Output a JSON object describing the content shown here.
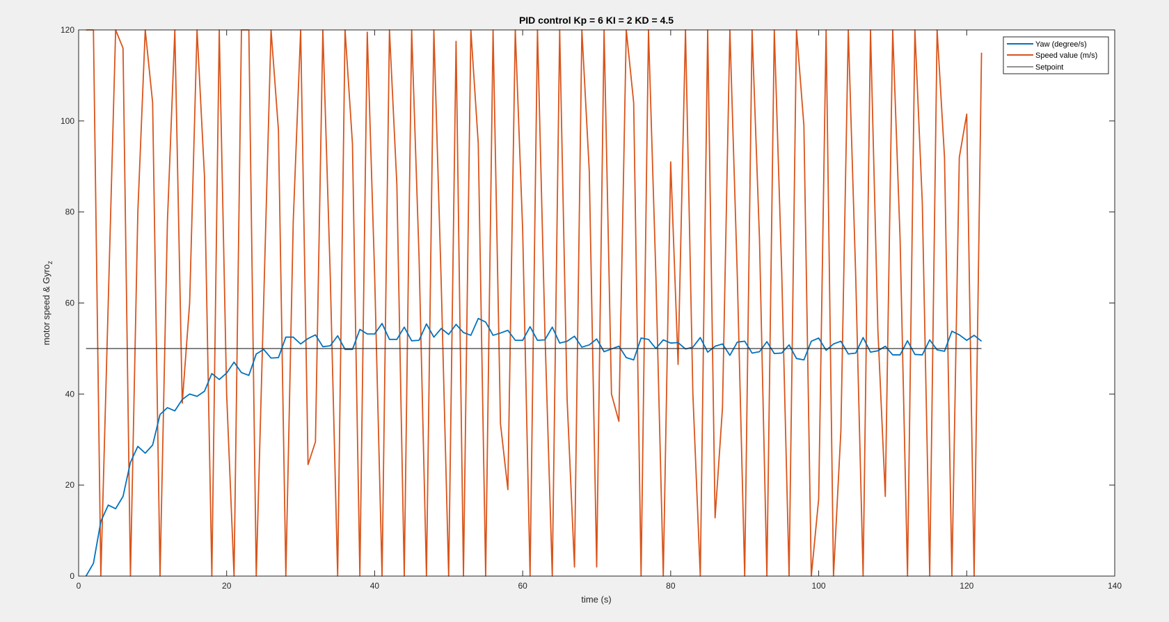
{
  "chart_data": {
    "type": "line",
    "title": "PID control Kp = 6 KI = 2 KD = 4.5",
    "xlabel": "time (s)",
    "ylabel_main": "motor speed & Gyro",
    "ylabel_sub": "z",
    "xlim": [
      0,
      140
    ],
    "ylim": [
      0,
      120
    ],
    "xticks": [
      0,
      20,
      40,
      60,
      80,
      100,
      120,
      140
    ],
    "yticks": [
      0,
      20,
      40,
      60,
      80,
      100,
      120
    ],
    "grid": false,
    "legend_position": "top-right",
    "colors": {
      "yaw": "#0072bd",
      "speed": "#d95319",
      "setpoint": "#262626"
    },
    "series": [
      {
        "name": "Yaw (degree/s)",
        "key": "yaw",
        "x": [
          1,
          2,
          3,
          4,
          5,
          6,
          7,
          8,
          9,
          10,
          11,
          12,
          13,
          14,
          15,
          16,
          17,
          18,
          19,
          20,
          21,
          22,
          23,
          24,
          25,
          26,
          27,
          28,
          29,
          30,
          31,
          32,
          33,
          34,
          35,
          36,
          37,
          38,
          39,
          40,
          41,
          42,
          43,
          44,
          45,
          46,
          47,
          48,
          49,
          50,
          51,
          52,
          53,
          54,
          55,
          56,
          57,
          58,
          59,
          60,
          61,
          62,
          63,
          64,
          65,
          66,
          67,
          68,
          69,
          70,
          71,
          72,
          73,
          74,
          75,
          76,
          77,
          78,
          79,
          80,
          81,
          82,
          83,
          84,
          85,
          86,
          87,
          88,
          89,
          90,
          91,
          92,
          93,
          94,
          95,
          96,
          97,
          98,
          99,
          100,
          101,
          102,
          103,
          104,
          105,
          106,
          107,
          108,
          109,
          110,
          111,
          112,
          113,
          114,
          115,
          116,
          117,
          118,
          119,
          120,
          121,
          122
        ],
        "values": [
          0,
          2.8,
          12,
          15.6,
          14.8,
          17.5,
          25,
          28.5,
          27,
          28.8,
          35.5,
          37,
          36.3,
          38.8,
          40,
          39.5,
          40.6,
          44.5,
          43.2,
          44.6,
          47,
          44.7,
          44.1,
          48.8,
          49.8,
          47.9,
          48,
          52.5,
          52.5,
          51,
          52.2,
          53,
          50.4,
          50.6,
          52.8,
          49.8,
          49.8,
          54.2,
          53.2,
          53.2,
          55.5,
          52,
          52,
          54.7,
          51.7,
          51.8,
          55.4,
          52.5,
          54.4,
          53.1,
          55.3,
          53.5,
          52.9,
          56.6,
          55.8,
          52.9,
          53.4,
          54,
          51.8,
          51.8,
          54.8,
          51.8,
          51.9,
          54.7,
          51.2,
          51.6,
          52.7,
          50.3,
          50.8,
          52.1,
          49.3,
          49.9,
          50.5,
          48,
          47.5,
          52.3,
          52,
          50,
          51.9,
          51.2,
          51.3,
          49.9,
          50.3,
          52.4,
          49.2,
          50.5,
          51,
          48.5,
          51.4,
          51.6,
          49,
          49.3,
          51.5,
          48.9,
          49,
          50.8,
          47.8,
          47.5,
          51.6,
          52.3,
          49.6,
          51,
          51.6,
          48.8,
          49,
          52.4,
          49.2,
          49.5,
          50.5,
          48.6,
          48.6,
          51.7,
          48.7,
          48.6,
          51.9,
          49.7,
          49.4,
          53.8,
          53,
          51.8,
          52.9,
          51.6
        ]
      },
      {
        "name": "Speed value (m/s)",
        "key": "speed",
        "x": [
          1,
          2,
          3,
          4,
          5,
          6,
          7,
          8,
          9,
          10,
          11,
          12,
          13,
          14,
          15,
          16,
          17,
          18,
          19,
          20,
          21,
          22,
          23,
          24,
          25,
          26,
          27,
          28,
          29,
          30,
          31,
          32,
          33,
          34,
          35,
          36,
          37,
          38,
          39,
          40,
          41,
          42,
          43,
          44,
          45,
          46,
          47,
          48,
          49,
          50,
          51,
          52,
          53,
          54,
          55,
          56,
          57,
          58,
          59,
          60,
          61,
          62,
          63,
          64,
          65,
          66,
          67,
          68,
          69,
          70,
          71,
          72,
          73,
          74,
          75,
          76,
          77,
          78,
          79,
          80,
          81,
          82,
          83,
          84,
          85,
          86,
          87,
          88,
          89,
          90,
          91,
          92,
          93,
          94,
          95,
          96,
          97,
          98,
          99,
          100,
          101,
          102,
          103,
          104,
          105,
          106,
          107,
          108,
          109,
          110,
          111,
          112,
          113,
          114,
          115,
          116,
          117,
          118,
          119,
          120,
          121,
          122
        ],
        "values": [
          120,
          120,
          0,
          60,
          120,
          116,
          0,
          80,
          120,
          104,
          0,
          78,
          120,
          38,
          60,
          120,
          88,
          0,
          120,
          40,
          0,
          120,
          120,
          0,
          60,
          120,
          98,
          0,
          78,
          120,
          24.5,
          29.5,
          120,
          66,
          0,
          120,
          95,
          0,
          119.5,
          66,
          0,
          120,
          86,
          0,
          120,
          70,
          0,
          120,
          64,
          0,
          117.5,
          0,
          120,
          95,
          0,
          120,
          33.5,
          19,
          120,
          76,
          0,
          120,
          54,
          0,
          120,
          39,
          2,
          120,
          89,
          2,
          120,
          40,
          34,
          120,
          104,
          0,
          120,
          66,
          0,
          91,
          46.5,
          120,
          40,
          0,
          120,
          12.8,
          37,
          120,
          66,
          0,
          120,
          74,
          0,
          120,
          67,
          0,
          120,
          99,
          0,
          17,
          120,
          0,
          32,
          120,
          66,
          0,
          120,
          54,
          17.5,
          120,
          74,
          0,
          120,
          82,
          0,
          120,
          92,
          0,
          92,
          101.5,
          0,
          115
        ]
      },
      {
        "name": "Setpoint",
        "key": "setpoint",
        "x": [
          1,
          122
        ],
        "values": [
          50,
          50
        ]
      }
    ]
  }
}
